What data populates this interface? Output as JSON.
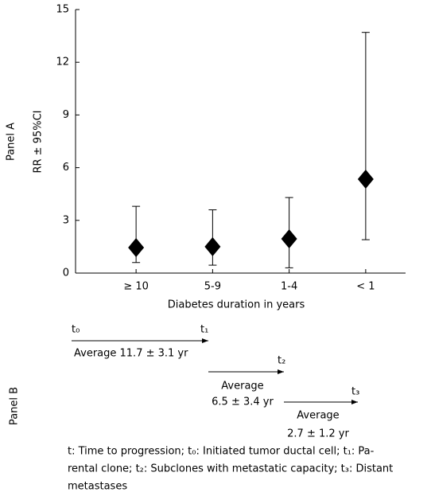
{
  "chart_data": {
    "type": "errorpoint",
    "panel_label": "Panel A",
    "categories": [
      "≥ 10",
      "5-9",
      "1-4",
      "< 1"
    ],
    "values": [
      1.45,
      1.5,
      1.95,
      5.35
    ],
    "ci_lower": [
      0.6,
      0.45,
      0.3,
      1.9
    ],
    "ci_upper": [
      3.8,
      3.6,
      4.3,
      13.7
    ],
    "color": "#000000",
    "ylim": [
      0,
      15
    ],
    "yticks": [
      0,
      3,
      6,
      9,
      12,
      15
    ],
    "ylabel": "RR ± 95%CI",
    "xlabel": "Diabetes duration in years"
  },
  "panel_b": {
    "panel_label": "Panel B",
    "t0": "t₀",
    "t1": "t₁",
    "t2": "t₂",
    "t3": "t₃",
    "avg1": "Average 11.7 ± 3.1 yr",
    "avg2_line1": "Average",
    "avg2_line2": "6.5 ± 3.4 yr",
    "avg3_line1": "Average",
    "avg3_line2": "2.7 ± 1.2 yr"
  },
  "caption": [
    "t: Time to progression; t₀: Initiated tumor ductal cell; t₁: Pa-",
    "rental clone; t₂: Subclones with metastatic capacity; t₃: Distant",
    "metastases"
  ]
}
